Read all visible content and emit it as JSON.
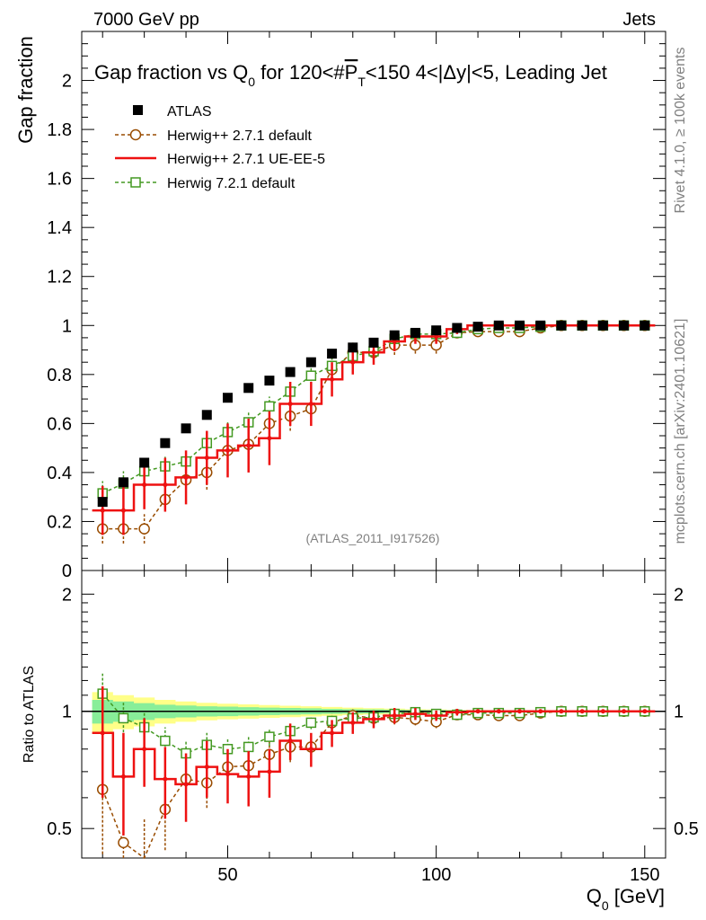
{
  "header": {
    "left": "7000 GeV pp",
    "right": "Jets"
  },
  "side_labels": {
    "rivet": "Rivet 4.1.0, ≥ 100k events",
    "mcplots": "mcplots.cern.ch [arXiv:2401.10621]"
  },
  "colors": {
    "atlas": "#000000",
    "herwigpp_default": "#994c00",
    "herwigpp_ueee5": "#ee1111",
    "herwig7": "#449922",
    "band_inner": "#88ee99",
    "band_outer": "#ffff88"
  },
  "chart_data": [
    {
      "type": "line",
      "title": "Gap fraction vs Q0 for 120<#PT<150  4<|Δy|<5, Leading Jet",
      "title_parts": {
        "pre": "Gap fraction vs Q",
        "sub0": "0",
        "mid": " for 120<#",
        "p": "P",
        "sub_t": "T",
        "post": "<150  4<|Δy|<5, Leading Jet"
      },
      "ylabel": "Gap fraction",
      "xlim": [
        15,
        155
      ],
      "ylim": [
        0,
        2.2
      ],
      "yticks": [
        0,
        0.2,
        0.4,
        0.6,
        0.8,
        1,
        1.2,
        1.4,
        1.6,
        1.8,
        2
      ],
      "ytick_labels": [
        "0",
        "0.2",
        "0.4",
        "0.6",
        "0.8",
        "1",
        "1.2",
        "1.4",
        "1.6",
        "1.8",
        "2"
      ],
      "watermark": "(ATLAS_2011_I917526)",
      "legend": [
        "ATLAS",
        "Herwig++ 2.7.1 default",
        "Herwig++ 2.7.1 UE-EE-5",
        "Herwig 7.2.1 default"
      ],
      "x": [
        20,
        25,
        30,
        35,
        40,
        45,
        50,
        55,
        60,
        65,
        70,
        75,
        80,
        85,
        90,
        95,
        100,
        105,
        110,
        115,
        120,
        125,
        130,
        135,
        140,
        145,
        150
      ],
      "series": [
        {
          "name": "ATLAS",
          "style": "square-marker",
          "values": [
            0.28,
            0.36,
            0.44,
            0.52,
            0.58,
            0.635,
            0.705,
            0.745,
            0.775,
            0.81,
            0.85,
            0.885,
            0.91,
            0.93,
            0.96,
            0.97,
            0.98,
            0.99,
            0.995,
            1.0,
            1.0,
            1.0,
            1.0,
            1.0,
            1.0,
            1.0,
            1.0
          ]
        },
        {
          "name": "Herwig++ 2.7.1 default",
          "style": "dashed-circle",
          "values": [
            0.17,
            0.17,
            0.17,
            0.29,
            0.37,
            0.4,
            0.49,
            0.515,
            0.6,
            0.63,
            0.66,
            0.82,
            0.89,
            0.89,
            0.92,
            0.92,
            0.92,
            0.97,
            0.975,
            0.975,
            0.975,
            0.99,
            1.0,
            1.0,
            1.0,
            1.0,
            1.0
          ],
          "errors": [
            0.06,
            0.06,
            0.06,
            0.05,
            0.06,
            0.07,
            0.06,
            0.06,
            0.06,
            0.06,
            0.06,
            0.05,
            0.04,
            0.04,
            0.04,
            0.035,
            0.035,
            0.02,
            0.015,
            0.015,
            0.015,
            0.01,
            0.005,
            0.005,
            0.005,
            0.005,
            0.005
          ]
        },
        {
          "name": "Herwig++ 2.7.1 UE-EE-5",
          "style": "solid-line",
          "values": [
            0.245,
            0.245,
            0.35,
            0.35,
            0.38,
            0.46,
            0.49,
            0.51,
            0.54,
            0.68,
            0.68,
            0.78,
            0.85,
            0.89,
            0.935,
            0.955,
            0.955,
            0.985,
            1.0,
            1.0,
            1.0,
            1.0,
            1.0,
            1.0,
            1.0,
            1.0,
            1.0
          ],
          "errors": [
            0.1,
            0.1,
            0.1,
            0.11,
            0.11,
            0.11,
            0.11,
            0.11,
            0.11,
            0.09,
            0.09,
            0.07,
            0.05,
            0.05,
            0.04,
            0.03,
            0.03,
            0.02,
            0.01,
            0.01,
            0.01,
            0.005,
            0.005,
            0.005,
            0.005,
            0.005,
            0.005
          ]
        },
        {
          "name": "Herwig 7.2.1 default",
          "style": "dashed-open-square",
          "values": [
            0.315,
            0.355,
            0.405,
            0.425,
            0.445,
            0.52,
            0.565,
            0.605,
            0.67,
            0.73,
            0.795,
            0.835,
            0.875,
            0.895,
            0.945,
            0.965,
            0.965,
            0.97,
            0.985,
            0.99,
            0.99,
            0.995,
            1.0,
            1.0,
            1.0,
            1.0,
            1.0
          ],
          "errors": [
            0.05,
            0.05,
            0.045,
            0.045,
            0.045,
            0.045,
            0.045,
            0.045,
            0.04,
            0.04,
            0.035,
            0.03,
            0.03,
            0.025,
            0.02,
            0.02,
            0.02,
            0.015,
            0.01,
            0.01,
            0.01,
            0.005,
            0.005,
            0.005,
            0.005,
            0.005,
            0.005
          ]
        }
      ]
    },
    {
      "type": "line",
      "ylabel": "Ratio to ATLAS",
      "xlabel": "Q0 [GeV]",
      "xlabel_parts": {
        "pre": "Q",
        "sub": "0",
        "post": " [GeV]"
      },
      "xlim": [
        15,
        155
      ],
      "ylim": [
        0.42,
        2.3
      ],
      "yscale": "log",
      "yticks": [
        0.5,
        1,
        2
      ],
      "ytick_labels": [
        "0.5",
        "1",
        "2"
      ],
      "xticks": [
        50,
        100,
        150
      ],
      "xtick_labels": [
        "50",
        "100",
        "150"
      ],
      "x": [
        20,
        25,
        30,
        35,
        40,
        45,
        50,
        55,
        60,
        65,
        70,
        75,
        80,
        85,
        90,
        95,
        100,
        105,
        110,
        115,
        120,
        125,
        130,
        135,
        140,
        145,
        150
      ],
      "band": {
        "inner": [
          0.07,
          0.06,
          0.05,
          0.04,
          0.035,
          0.03,
          0.028,
          0.025,
          0.022,
          0.02,
          0.018,
          0.015,
          0.013,
          0.012,
          0.01,
          0.008,
          0.007,
          0.006,
          0.005,
          0.004,
          0.004,
          0.003,
          0.003,
          0.003,
          0.003,
          0.003,
          0.003
        ],
        "outer": [
          0.12,
          0.1,
          0.085,
          0.07,
          0.06,
          0.052,
          0.046,
          0.042,
          0.038,
          0.034,
          0.03,
          0.026,
          0.022,
          0.019,
          0.016,
          0.013,
          0.011,
          0.009,
          0.007,
          0.006,
          0.005,
          0.005,
          0.004,
          0.004,
          0.004,
          0.004,
          0.004
        ]
      },
      "series": [
        {
          "name": "Herwig++ 2.7.1 default",
          "values": [
            0.63,
            0.46,
            0.38,
            0.56,
            0.67,
            0.655,
            0.72,
            0.725,
            0.775,
            0.81,
            0.81,
            0.935,
            0.975,
            0.96,
            0.965,
            0.955,
            0.94,
            0.98,
            0.98,
            0.975,
            0.975,
            0.99,
            1.0,
            1.0,
            1.0,
            1.0,
            1.0
          ],
          "errors": [
            0.2,
            0.2,
            0.15,
            0.12,
            0.1,
            0.09,
            0.09,
            0.08,
            0.07,
            0.07,
            0.06,
            0.05,
            0.04,
            0.04,
            0.04,
            0.035,
            0.035,
            0.02,
            0.015,
            0.015,
            0.015,
            0.01,
            0.005,
            0.005,
            0.005,
            0.005,
            0.005
          ]
        },
        {
          "name": "Herwig++ 2.7.1 UE-EE-5",
          "values": [
            0.88,
            0.68,
            0.8,
            0.67,
            0.65,
            0.72,
            0.69,
            0.68,
            0.7,
            0.84,
            0.8,
            0.88,
            0.935,
            0.955,
            0.975,
            0.985,
            0.975,
            0.995,
            1.0,
            1.0,
            1.0,
            1.0,
            1.0,
            1.0,
            1.0,
            1.0,
            1.0
          ],
          "errors": [
            0.28,
            0.2,
            0.16,
            0.14,
            0.13,
            0.12,
            0.11,
            0.11,
            0.1,
            0.09,
            0.08,
            0.07,
            0.06,
            0.05,
            0.045,
            0.035,
            0.03,
            0.02,
            0.01,
            0.01,
            0.01,
            0.005,
            0.005,
            0.005,
            0.005,
            0.005,
            0.005
          ]
        },
        {
          "name": "Herwig 7.2.1 default",
          "values": [
            1.11,
            0.96,
            0.91,
            0.84,
            0.78,
            0.82,
            0.8,
            0.81,
            0.86,
            0.89,
            0.935,
            0.945,
            0.96,
            0.965,
            0.985,
            0.995,
            0.985,
            0.98,
            0.99,
            0.99,
            0.99,
            0.995,
            1.0,
            1.0,
            1.0,
            1.0,
            1.0
          ],
          "errors": [
            0.14,
            0.1,
            0.08,
            0.07,
            0.06,
            0.06,
            0.05,
            0.05,
            0.045,
            0.04,
            0.035,
            0.03,
            0.03,
            0.025,
            0.02,
            0.02,
            0.02,
            0.015,
            0.01,
            0.01,
            0.01,
            0.005,
            0.005,
            0.005,
            0.005,
            0.005,
            0.005
          ]
        }
      ]
    }
  ]
}
